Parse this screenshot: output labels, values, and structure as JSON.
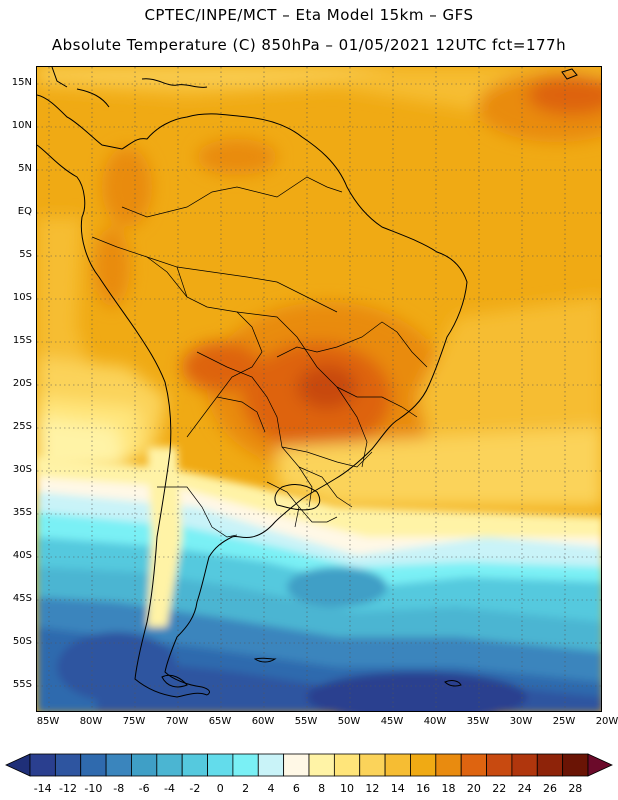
{
  "title_line1": "CPTEC/INPE/MCT –  Eta Model 15km – GFS",
  "title_line2": "Absolute Temperature (C) 850hPa – 01/05/2021 12UTC fct=177h",
  "lat_labels": [
    "15N",
    "10N",
    "5N",
    "EQ",
    "5S",
    "10S",
    "15S",
    "20S",
    "25S",
    "30S",
    "35S",
    "40S",
    "45S",
    "50S",
    "55S"
  ],
  "lon_labels": [
    "85W",
    "80W",
    "75W",
    "70W",
    "65W",
    "60W",
    "55W",
    "50W",
    "45W",
    "40W",
    "35W",
    "30W",
    "25W",
    "20W"
  ],
  "colorbar": {
    "labels": [
      "-14",
      "-12",
      "-10",
      "-8",
      "-6",
      "-4",
      "-2",
      "0",
      "2",
      "4",
      "6",
      "8",
      "10",
      "12",
      "14",
      "16",
      "18",
      "20",
      "22",
      "24",
      "26",
      "28"
    ],
    "colors": [
      "#2a3f8f",
      "#2e55a0",
      "#2f6aae",
      "#3a85bd",
      "#3f9fc6",
      "#4bb5d2",
      "#55c9de",
      "#63dceb",
      "#7af0f5",
      "#c9f3f8",
      "#fff8e6",
      "#fff3a6",
      "#ffe57a",
      "#fbd35a",
      "#f6bd33",
      "#f0aa14",
      "#e98b0f",
      "#de6410",
      "#c84a10",
      "#b0360d",
      "#8e2309",
      "#6a1405"
    ],
    "under_color": "#1f2f78",
    "over_color": "#6b0a2a"
  }
}
